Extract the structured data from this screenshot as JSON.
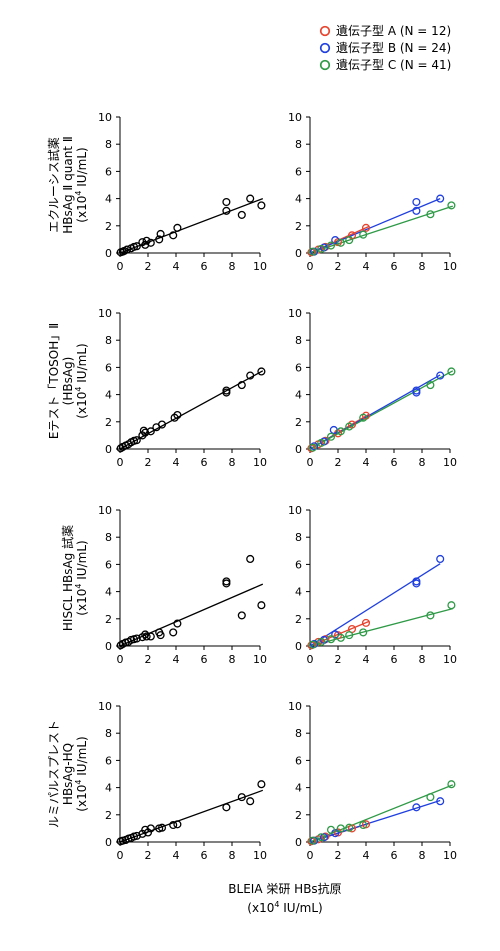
{
  "legend": {
    "items": [
      {
        "label": "遺伝子型 A (N = 12)",
        "color": "#e8432d"
      },
      {
        "label": "遺伝子型 B (N = 24)",
        "color": "#1f3fe0"
      },
      {
        "label": "遺伝子型 C (N = 41)",
        "color": "#2e9a46"
      }
    ],
    "placement": "top-right"
  },
  "xaxis": {
    "title_line1": "BLEIA 栄研 HBs抗原",
    "title_line2_prefix": "(x10",
    "title_line2_sup": "4",
    "title_line2_suffix": " IU/mL)",
    "ticks": [
      "0",
      "2",
      "4",
      "6",
      "8",
      "10"
    ]
  },
  "yaxis": {
    "ticks": [
      "0",
      "2",
      "4",
      "6",
      "8",
      "10"
    ]
  },
  "rows": [
    {
      "label_lines": [
        "エクルーシス試薬",
        "HBsAg Ⅱ quant Ⅱ"
      ],
      "unit": {
        "prefix": "(x10",
        "sup": "4",
        "suffix": " IU/mL)"
      }
    },
    {
      "label_lines": [
        "Eテスト「TOSOH」Ⅱ",
        "(HBsAg)"
      ],
      "unit": {
        "prefix": "(x10",
        "sup": "4",
        "suffix": " IU/mL)"
      }
    },
    {
      "label_lines": [
        "HISCL HBsAg 試薬"
      ],
      "unit": {
        "prefix": "(x10",
        "sup": "4",
        "suffix": " IU/mL)"
      }
    },
    {
      "label_lines": [
        "ルミパルスプレスト",
        "HBsAg-HQ"
      ],
      "unit": {
        "prefix": "(x10",
        "sup": "4",
        "suffix": " IU/mL)"
      }
    }
  ],
  "chart_data": [
    {
      "type": "scatter",
      "row": 0,
      "column": "all",
      "xlim": [
        0,
        10
      ],
      "ylim": [
        0,
        10
      ],
      "grid": false,
      "points": [
        [
          0.05,
          0.05
        ],
        [
          0.2,
          0.1
        ],
        [
          0.3,
          0.15
        ],
        [
          0.5,
          0.25
        ],
        [
          0.8,
          0.35
        ],
        [
          1.0,
          0.45
        ],
        [
          1.2,
          0.5
        ],
        [
          1.6,
          0.8
        ],
        [
          1.8,
          0.6
        ],
        [
          1.9,
          0.9
        ],
        [
          2.2,
          0.75
        ],
        [
          2.8,
          1.0
        ],
        [
          2.9,
          1.4
        ],
        [
          3.8,
          1.3
        ],
        [
          4.1,
          1.85
        ],
        [
          7.6,
          3.75
        ],
        [
          7.6,
          3.1
        ],
        [
          8.7,
          2.8
        ],
        [
          9.3,
          4.0
        ],
        [
          10.1,
          3.5
        ]
      ],
      "fit_lines": [
        {
          "series": "all",
          "x": [
            0,
            10.2
          ],
          "y": [
            0,
            4.0
          ]
        }
      ]
    },
    {
      "type": "scatter",
      "row": 0,
      "column": "genotype",
      "xlim": [
        0,
        10
      ],
      "ylim": [
        0,
        10
      ],
      "grid": false,
      "series": [
        {
          "name": "遺伝子型 A",
          "points": [
            [
              0.1,
              0.05
            ],
            [
              0.6,
              0.25
            ],
            [
              1.1,
              0.45
            ],
            [
              2.0,
              0.8
            ],
            [
              3.0,
              1.3
            ],
            [
              4.0,
              1.85
            ]
          ]
        },
        {
          "name": "遺伝子型 B",
          "points": [
            [
              0.3,
              0.1
            ],
            [
              1.0,
              0.4
            ],
            [
              1.8,
              0.95
            ],
            [
              7.6,
              3.75
            ],
            [
              7.6,
              3.1
            ],
            [
              9.3,
              4.0
            ]
          ]
        },
        {
          "name": "遺伝子型 C",
          "points": [
            [
              0.2,
              0.1
            ],
            [
              0.8,
              0.3
            ],
            [
              1.5,
              0.55
            ],
            [
              2.2,
              0.75
            ],
            [
              2.8,
              0.95
            ],
            [
              3.8,
              1.35
            ],
            [
              8.6,
              2.85
            ],
            [
              10.1,
              3.5
            ]
          ]
        }
      ],
      "fit_lines": [
        {
          "series": "遺伝子型 A",
          "x": [
            0,
            4.2
          ],
          "y": [
            0,
            1.95
          ]
        },
        {
          "series": "遺伝子型 B",
          "x": [
            0,
            9.3
          ],
          "y": [
            0,
            4.0
          ]
        },
        {
          "series": "遺伝子型 C",
          "x": [
            0,
            10.2
          ],
          "y": [
            0,
            3.45
          ]
        }
      ]
    },
    {
      "type": "scatter",
      "row": 1,
      "column": "all",
      "xlim": [
        0,
        10
      ],
      "ylim": [
        0,
        10
      ],
      "grid": false,
      "points": [
        [
          0.05,
          0.05
        ],
        [
          0.2,
          0.15
        ],
        [
          0.4,
          0.25
        ],
        [
          0.6,
          0.35
        ],
        [
          0.8,
          0.5
        ],
        [
          1.0,
          0.6
        ],
        [
          1.2,
          0.65
        ],
        [
          1.6,
          1.0
        ],
        [
          1.7,
          1.35
        ],
        [
          1.8,
          1.2
        ],
        [
          2.2,
          1.3
        ],
        [
          2.6,
          1.6
        ],
        [
          3.0,
          1.8
        ],
        [
          3.9,
          2.3
        ],
        [
          4.1,
          2.5
        ],
        [
          7.6,
          4.3
        ],
        [
          7.6,
          4.15
        ],
        [
          8.7,
          4.7
        ],
        [
          9.3,
          5.4
        ],
        [
          10.1,
          5.7
        ]
      ],
      "fit_lines": [
        {
          "series": "all",
          "x": [
            0,
            10.2
          ],
          "y": [
            0,
            5.75
          ]
        }
      ]
    },
    {
      "type": "scatter",
      "row": 1,
      "column": "genotype",
      "xlim": [
        0,
        10
      ],
      "ylim": [
        0,
        10
      ],
      "grid": false,
      "series": [
        {
          "name": "遺伝子型 A",
          "points": [
            [
              0.1,
              0.05
            ],
            [
              0.6,
              0.35
            ],
            [
              1.1,
              0.6
            ],
            [
              2.0,
              1.15
            ],
            [
              3.0,
              1.8
            ],
            [
              4.0,
              2.45
            ]
          ]
        },
        {
          "name": "遺伝子型 B",
          "points": [
            [
              0.3,
              0.2
            ],
            [
              1.0,
              0.55
            ],
            [
              1.7,
              1.4
            ],
            [
              7.6,
              4.3
            ],
            [
              7.6,
              4.15
            ],
            [
              9.3,
              5.4
            ]
          ]
        },
        {
          "name": "遺伝子型 C",
          "points": [
            [
              0.2,
              0.1
            ],
            [
              0.8,
              0.45
            ],
            [
              1.5,
              0.9
            ],
            [
              2.2,
              1.3
            ],
            [
              2.8,
              1.65
            ],
            [
              3.8,
              2.3
            ],
            [
              8.6,
              4.7
            ],
            [
              10.1,
              5.7
            ]
          ]
        }
      ],
      "fit_lines": [
        {
          "series": "遺伝子型 A",
          "x": [
            0,
            4.2
          ],
          "y": [
            0,
            2.55
          ]
        },
        {
          "series": "遺伝子型 B",
          "x": [
            0,
            9.3
          ],
          "y": [
            0,
            5.45
          ]
        },
        {
          "series": "遺伝子型 C",
          "x": [
            0,
            10.2
          ],
          "y": [
            0,
            5.75
          ]
        }
      ]
    },
    {
      "type": "scatter",
      "row": 2,
      "column": "all",
      "xlim": [
        0,
        10
      ],
      "ylim": [
        0,
        10
      ],
      "grid": false,
      "points": [
        [
          0.05,
          0.05
        ],
        [
          0.2,
          0.15
        ],
        [
          0.4,
          0.25
        ],
        [
          0.6,
          0.3
        ],
        [
          0.8,
          0.45
        ],
        [
          1.0,
          0.5
        ],
        [
          1.2,
          0.55
        ],
        [
          1.6,
          0.65
        ],
        [
          1.8,
          0.85
        ],
        [
          1.9,
          0.7
        ],
        [
          2.2,
          0.7
        ],
        [
          2.8,
          1.0
        ],
        [
          2.9,
          0.8
        ],
        [
          3.8,
          1.0
        ],
        [
          4.1,
          1.65
        ],
        [
          7.6,
          4.6
        ],
        [
          7.6,
          4.75
        ],
        [
          8.7,
          2.25
        ],
        [
          9.3,
          6.4
        ],
        [
          10.1,
          3.0
        ]
      ],
      "fit_lines": [
        {
          "series": "all",
          "x": [
            0,
            10.2
          ],
          "y": [
            0,
            4.55
          ]
        }
      ]
    },
    {
      "type": "scatter",
      "row": 2,
      "column": "genotype",
      "xlim": [
        0,
        10
      ],
      "ylim": [
        0,
        10
      ],
      "grid": false,
      "series": [
        {
          "name": "遺伝子型 A",
          "points": [
            [
              0.1,
              0.05
            ],
            [
              0.6,
              0.3
            ],
            [
              1.1,
              0.5
            ],
            [
              2.0,
              0.8
            ],
            [
              3.0,
              1.25
            ],
            [
              4.0,
              1.7
            ]
          ]
        },
        {
          "name": "遺伝子型 B",
          "points": [
            [
              0.3,
              0.15
            ],
            [
              1.0,
              0.45
            ],
            [
              1.8,
              0.85
            ],
            [
              7.6,
              4.6
            ],
            [
              7.6,
              4.75
            ],
            [
              9.3,
              6.4
            ]
          ]
        },
        {
          "name": "遺伝子型 C",
          "points": [
            [
              0.2,
              0.1
            ],
            [
              0.8,
              0.3
            ],
            [
              1.5,
              0.5
            ],
            [
              2.2,
              0.6
            ],
            [
              2.8,
              0.8
            ],
            [
              3.8,
              1.0
            ],
            [
              8.6,
              2.25
            ],
            [
              10.1,
              3.0
            ]
          ]
        }
      ],
      "fit_lines": [
        {
          "series": "遺伝子型 A",
          "x": [
            0,
            4.2
          ],
          "y": [
            0,
            1.8
          ]
        },
        {
          "series": "遺伝子型 B",
          "x": [
            0,
            9.3
          ],
          "y": [
            0,
            6.05
          ]
        },
        {
          "series": "遺伝子型 C",
          "x": [
            0,
            10.2
          ],
          "y": [
            0,
            2.75
          ]
        }
      ]
    },
    {
      "type": "scatter",
      "row": 3,
      "column": "all",
      "xlim": [
        0,
        10
      ],
      "ylim": [
        0,
        10
      ],
      "grid": false,
      "points": [
        [
          0.05,
          0.05
        ],
        [
          0.2,
          0.1
        ],
        [
          0.4,
          0.15
        ],
        [
          0.6,
          0.25
        ],
        [
          0.8,
          0.3
        ],
        [
          1.0,
          0.4
        ],
        [
          1.2,
          0.45
        ],
        [
          1.6,
          0.6
        ],
        [
          1.8,
          0.9
        ],
        [
          2.0,
          0.7
        ],
        [
          2.2,
          1.0
        ],
        [
          2.8,
          1.0
        ],
        [
          3.0,
          1.05
        ],
        [
          3.8,
          1.25
        ],
        [
          4.1,
          1.3
        ],
        [
          7.6,
          2.55
        ],
        [
          8.7,
          3.3
        ],
        [
          9.3,
          3.0
        ],
        [
          10.1,
          4.25
        ]
      ],
      "fit_lines": [
        {
          "series": "all",
          "x": [
            0,
            10.2
          ],
          "y": [
            0,
            3.8
          ]
        }
      ]
    },
    {
      "type": "scatter",
      "row": 3,
      "column": "genotype",
      "xlim": [
        0,
        10
      ],
      "ylim": [
        0,
        10
      ],
      "grid": false,
      "series": [
        {
          "name": "遺伝子型 A",
          "points": [
            [
              0.1,
              0.05
            ],
            [
              0.6,
              0.2
            ],
            [
              1.1,
              0.4
            ],
            [
              2.0,
              0.7
            ],
            [
              3.0,
              1.0
            ],
            [
              4.0,
              1.3
            ]
          ]
        },
        {
          "name": "遺伝子型 B",
          "points": [
            [
              0.3,
              0.1
            ],
            [
              1.0,
              0.35
            ],
            [
              1.8,
              0.65
            ],
            [
              7.6,
              2.55
            ],
            [
              9.3,
              3.0
            ]
          ]
        },
        {
          "name": "遺伝子型 C",
          "points": [
            [
              0.2,
              0.1
            ],
            [
              0.8,
              0.35
            ],
            [
              1.5,
              0.9
            ],
            [
              2.2,
              1.0
            ],
            [
              2.8,
              1.05
            ],
            [
              3.8,
              1.25
            ],
            [
              8.6,
              3.3
            ],
            [
              10.1,
              4.25
            ]
          ]
        }
      ],
      "fit_lines": [
        {
          "series": "遺伝子型 A",
          "x": [
            0,
            4.2
          ],
          "y": [
            0,
            1.35
          ]
        },
        {
          "series": "遺伝子型 B",
          "x": [
            0,
            9.3
          ],
          "y": [
            0,
            3.05
          ]
        },
        {
          "series": "遺伝子型 C",
          "x": [
            0,
            10.2
          ],
          "y": [
            0,
            4.2
          ]
        }
      ]
    }
  ]
}
